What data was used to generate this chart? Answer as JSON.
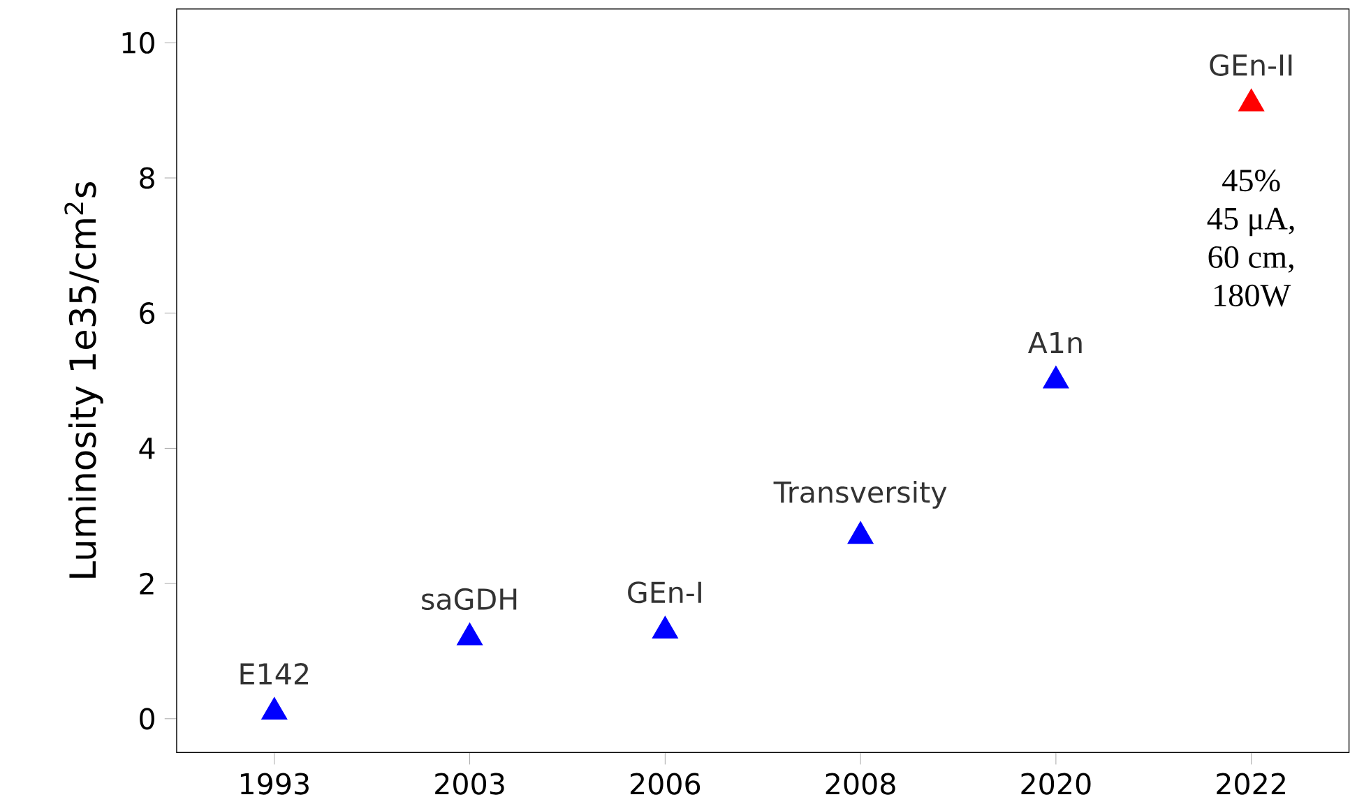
{
  "chart_data": {
    "type": "scatter",
    "ylabel": "Luminosity 1e35/cm$^{2}$s",
    "categories": [
      "1993",
      "2003",
      "2006",
      "2008",
      "2020",
      "2022"
    ],
    "series": [
      {
        "name": "E142",
        "color": "#0000ff",
        "values": [
          0.1,
          null,
          null,
          null,
          null,
          null
        ]
      },
      {
        "name": "saGDH",
        "color": "#0000ff",
        "values": [
          null,
          1.2,
          null,
          null,
          null,
          null
        ]
      },
      {
        "name": "GEn-I",
        "color": "#0000ff",
        "values": [
          null,
          null,
          1.3,
          null,
          null,
          null
        ]
      },
      {
        "name": "Transversity",
        "color": "#0000ff",
        "values": [
          null,
          null,
          null,
          2.7,
          null,
          null
        ]
      },
      {
        "name": "A1n",
        "color": "#0000ff",
        "values": [
          null,
          null,
          null,
          null,
          5.0,
          null
        ]
      },
      {
        "name": "GEn-II",
        "color": "#ff0000",
        "values": [
          null,
          null,
          null,
          null,
          null,
          9.1
        ]
      }
    ],
    "annotations": [
      "45%",
      "45 μA,",
      "60 cm,",
      "180W"
    ],
    "marker": "triangle",
    "ylim": [
      -0.5,
      10.5
    ],
    "yticks": [
      0,
      2,
      4,
      6,
      8,
      10
    ],
    "grid": false
  }
}
